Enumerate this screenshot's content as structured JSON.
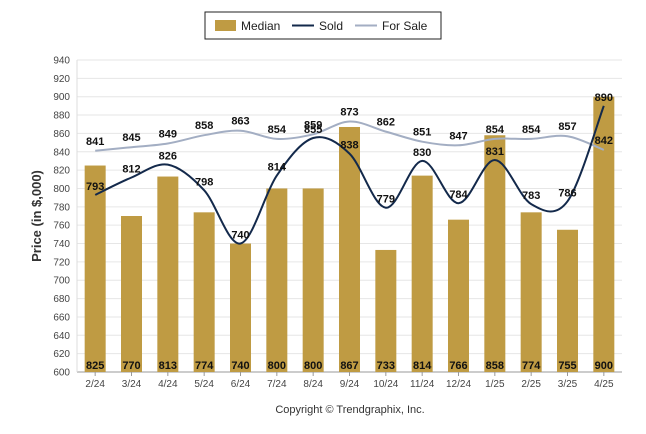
{
  "chart_data": {
    "type": "bar",
    "ylabel": "Price (in $,000)",
    "ylim": [
      600,
      940
    ],
    "ytick_step": 20,
    "categories": [
      "2/24",
      "3/24",
      "4/24",
      "5/24",
      "6/24",
      "7/24",
      "8/24",
      "9/24",
      "10/24",
      "11/24",
      "12/24",
      "1/25",
      "2/25",
      "3/25",
      "4/25"
    ],
    "series": [
      {
        "name": "Median",
        "type": "bar",
        "color": "#bf9b43",
        "values": [
          825,
          770,
          813,
          774,
          740,
          800,
          800,
          867,
          733,
          814,
          766,
          858,
          774,
          755,
          900
        ]
      },
      {
        "name": "Sold",
        "type": "line",
        "color": "#13294b",
        "values": [
          793,
          812,
          826,
          798,
          740,
          814,
          855,
          838,
          779,
          830,
          784,
          831,
          783,
          786,
          890
        ]
      },
      {
        "name": "For Sale",
        "type": "line",
        "color": "#a3aec3",
        "values": [
          841,
          845,
          849,
          858,
          863,
          854,
          859,
          873,
          862,
          851,
          847,
          854,
          854,
          857,
          842
        ]
      }
    ],
    "grid": true,
    "legend": "top-center",
    "footer": "Copyright © Trendgraphix, Inc."
  }
}
